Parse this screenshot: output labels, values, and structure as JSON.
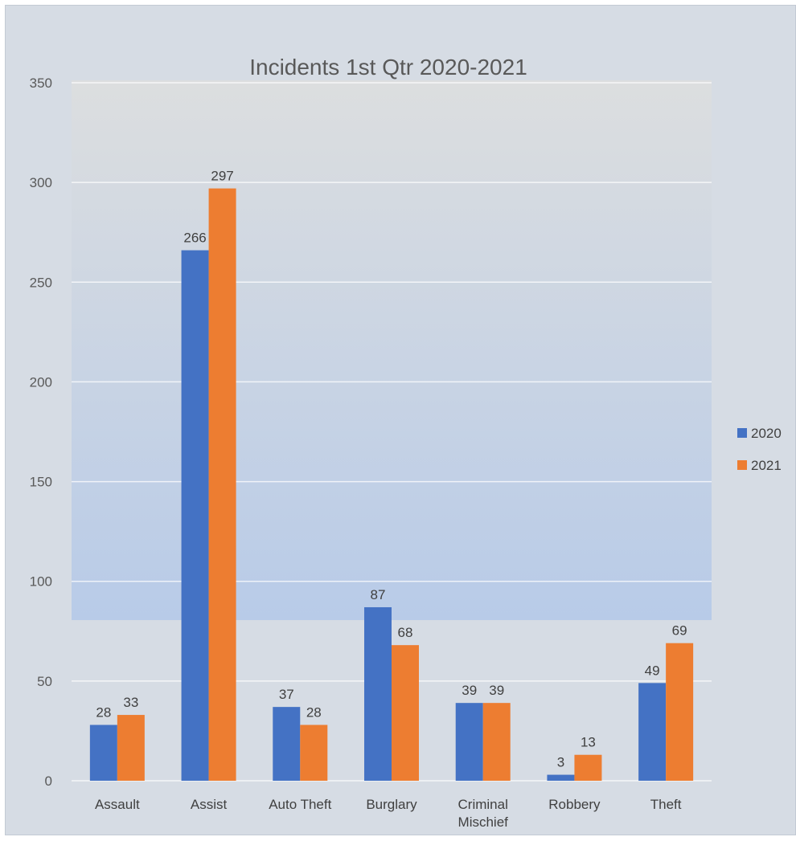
{
  "chart_data": {
    "type": "bar",
    "title": "Incidents 1st Qtr 2020-2021",
    "categories": [
      [
        "Assault"
      ],
      [
        "Assist"
      ],
      [
        "Auto Theft"
      ],
      [
        "Burglary"
      ],
      [
        "Criminal",
        "Mischief"
      ],
      [
        "Robbery"
      ],
      [
        "Theft"
      ]
    ],
    "series": [
      {
        "name": "2020",
        "values": [
          28,
          266,
          37,
          87,
          39,
          3,
          49
        ],
        "color": "#4472c4"
      },
      {
        "name": "2021",
        "values": [
          33,
          297,
          28,
          68,
          39,
          13,
          69
        ],
        "color": "#ed7d31"
      }
    ],
    "ylim": [
      0,
      350
    ],
    "yticks": [
      0,
      50,
      100,
      150,
      200,
      250,
      300,
      350
    ],
    "grid": true,
    "data_labels": true,
    "legend_position": "right",
    "xlabel": "",
    "ylabel": ""
  }
}
